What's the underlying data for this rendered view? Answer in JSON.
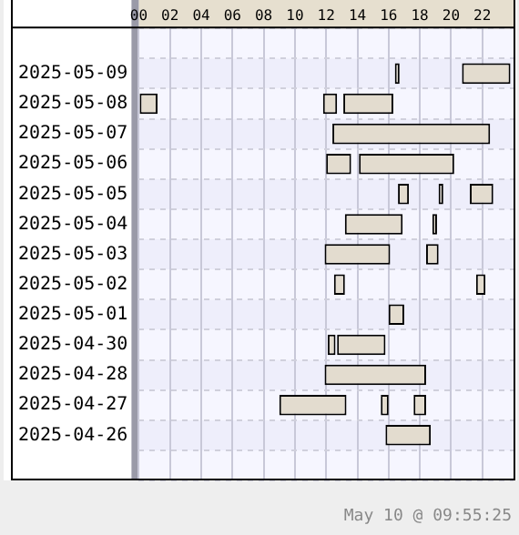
{
  "chart_data": {
    "type": "bar",
    "orientation": "horizontal",
    "annotations": [
      "May 10 @ 09:55:25"
    ],
    "categories": [
      null,
      "2025-05-09",
      "2025-05-08",
      "2025-05-07",
      "2025-05-06",
      "2025-05-05",
      "2025-05-04",
      "2025-05-03",
      "2025-05-02",
      "2025-05-01",
      "2025-04-30",
      "2025-04-28",
      "2025-04-27",
      "2025-04-26",
      null
    ],
    "xlim": [
      0,
      24
    ],
    "xticks": [
      {
        "value": 0,
        "label": "00"
      },
      {
        "value": 2,
        "label": "02"
      },
      {
        "value": 4,
        "label": "04"
      },
      {
        "value": 6,
        "label": "06"
      },
      {
        "value": 8,
        "label": "08"
      },
      {
        "value": 10,
        "label": "10"
      },
      {
        "value": 12,
        "label": "12"
      },
      {
        "value": 14,
        "label": "14"
      },
      {
        "value": 16,
        "label": "16"
      },
      {
        "value": 18,
        "label": "18"
      },
      {
        "value": 20,
        "label": "20"
      },
      {
        "value": 22,
        "label": "22"
      }
    ],
    "grid": true,
    "legend": false,
    "series": [
      {
        "color": "#e3dccf",
        "base": [
          null,
          16.4,
          0,
          12.4,
          12.0,
          16.6,
          13.2,
          11.9,
          12.5,
          16.0,
          12.1,
          11.9,
          9.0,
          15.8,
          null
        ],
        "values": [
          null,
          0.3,
          1.2,
          10.1,
          1.6,
          0.7,
          3.7,
          4.2,
          0.7,
          1.0,
          0.5,
          6.5,
          4.3,
          2.9,
          null
        ]
      },
      {
        "color": "#e3dccf",
        "base": [
          null,
          20.7,
          11.8,
          null,
          14.1,
          19.2,
          18.8,
          18.4,
          21.6,
          null,
          12.7,
          null,
          15.5,
          null,
          null
        ],
        "values": [
          null,
          3.1,
          0.9,
          null,
          6.1,
          0.3,
          0.3,
          0.8,
          0.6,
          null,
          3.1,
          null,
          0.5,
          null,
          null
        ]
      },
      {
        "color": "#e3dccf",
        "base": [
          null,
          null,
          13.1,
          null,
          null,
          21.2,
          null,
          null,
          null,
          null,
          null,
          null,
          17.6,
          null,
          null
        ],
        "values": [
          null,
          null,
          3.2,
          null,
          null,
          1.5,
          null,
          null,
          null,
          null,
          null,
          null,
          0.8,
          null,
          null
        ]
      }
    ]
  }
}
